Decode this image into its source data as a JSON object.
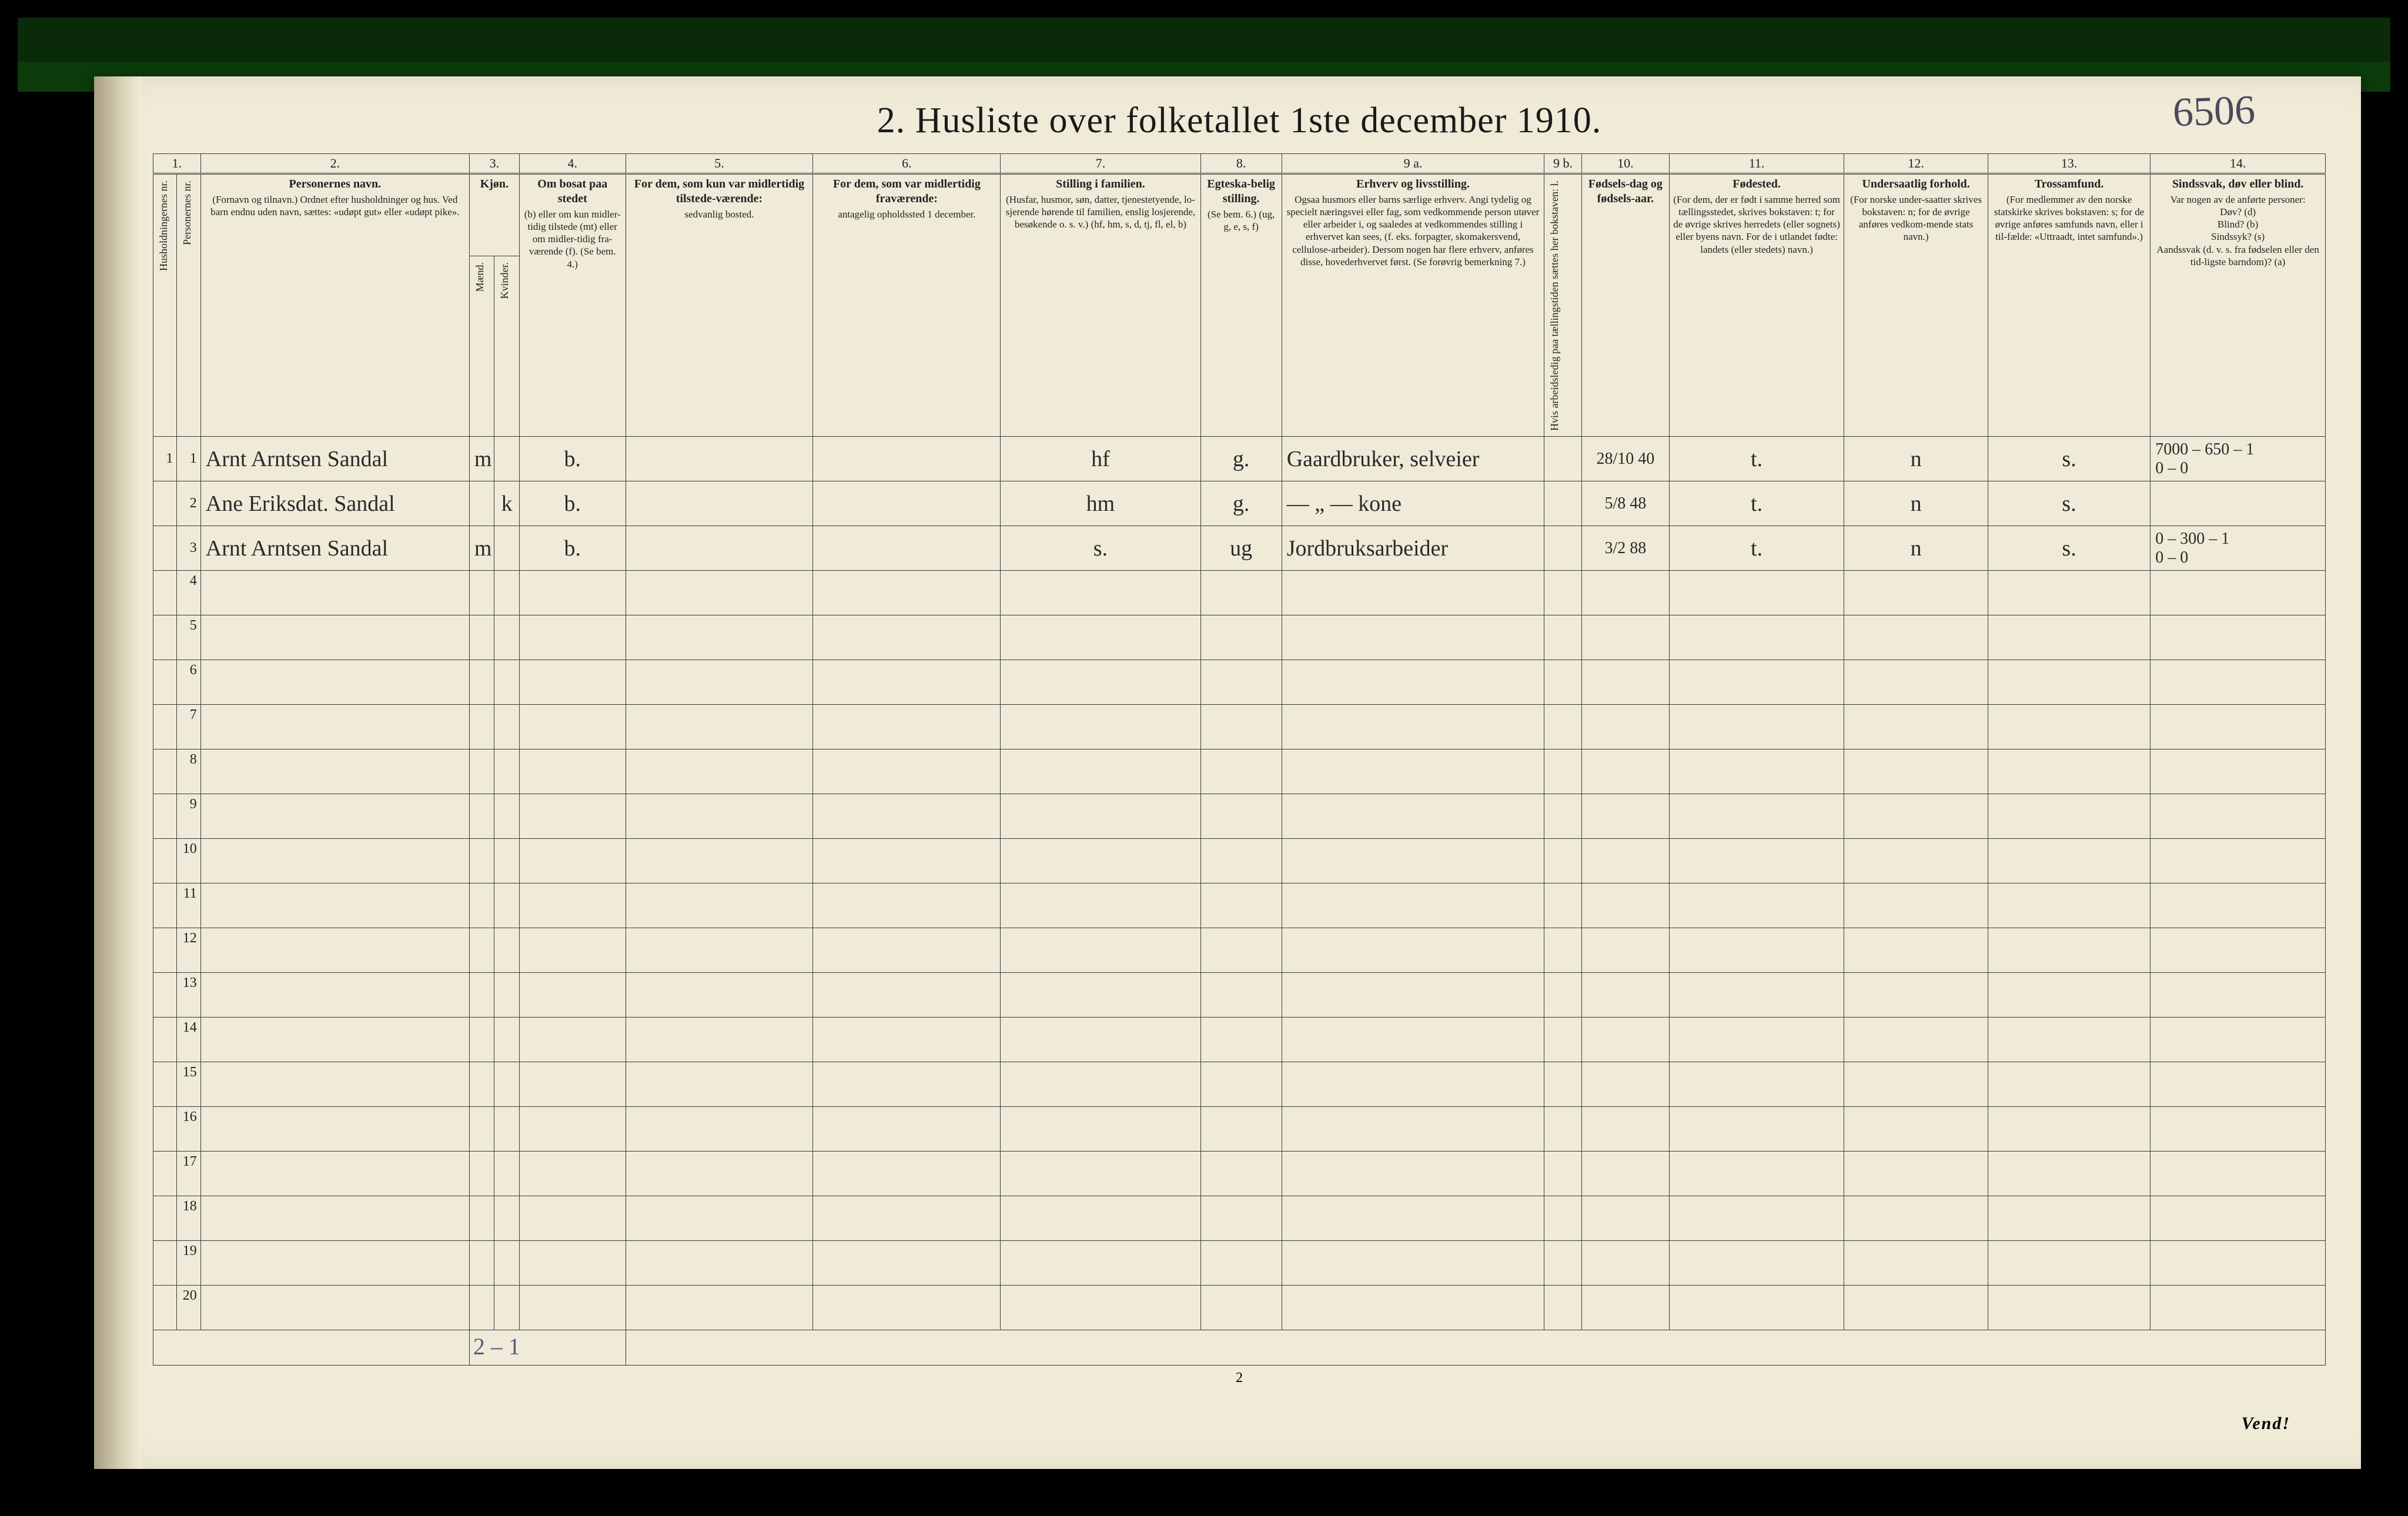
{
  "title": "2.   Husliste over folketallet 1ste december 1910.",
  "topright_handwritten": "6506",
  "page_number": "2",
  "turn_over": "Vend!",
  "foot_tally": "2 – 1",
  "col_numbers": [
    "1.",
    "2.",
    "3.",
    "4.",
    "5.",
    "6.",
    "7.",
    "8.",
    "9 a.",
    "9 b.",
    "10.",
    "11.",
    "12.",
    "13.",
    "14."
  ],
  "headers": {
    "hh": "Husholdningernes nr.",
    "pn": "Personernes nr.",
    "name_main": "Personernes navn.",
    "name_sub": "(Fornavn og tilnavn.)\nOrdnet efter husholdninger og hus.\nVed barn endnu uden navn, sættes: «udøpt gut» eller «udøpt pike».",
    "sex_main": "Kjøn.",
    "sex_m": "Mænd.",
    "sex_k": "Kvinder.",
    "c4_main": "Om bosat paa stedet",
    "c4_sub": "(b) eller om kun midler-tidig tilstede (mt) eller om midler-tidig fra-værende (f). (Se bem. 4.)",
    "c5_main": "For dem, som kun var midlertidig tilstede-værende:",
    "c5_sub": "sedvanlig bosted.",
    "c6_main": "For dem, som var midlertidig fraværende:",
    "c6_sub": "antagelig opholdssted 1 december.",
    "c7_main": "Stilling i familien.",
    "c7_sub": "(Husfar, husmor, søn, datter, tjenestetyende, lo-sjerende hørende til familien, enslig losjerende, besøkende o. s. v.) (hf, hm, s, d, tj, fl, el, b)",
    "c8_main": "Egteska-belig stilling.",
    "c8_sub": "(Se bem. 6.) (ug, g, e, s, f)",
    "c9a_main": "Erhverv og livsstilling.",
    "c9a_sub": "Ogsaa husmors eller barns særlige erhverv. Angi tydelig og specielt næringsvei eller fag, som vedkommende person utøver eller arbeider i, og saaledes at vedkommendes stilling i erhvervet kan sees, (f. eks. forpagter, skomakersvend, cellulose-arbeider). Dersom nogen har flere erhverv, anføres disse, hovederhvervet først. (Se forøvrig bemerkning 7.)",
    "c9b": "Hvis arbeidsledig paa tællingstiden sættes her bokstaven: l.",
    "c10_main": "Fødsels-dag og fødsels-aar.",
    "c11_main": "Fødested.",
    "c11_sub": "(For dem, der er født i samme herred som tællingsstedet, skrives bokstaven: t; for de øvrige skrives herredets (eller sognets) eller byens navn. For de i utlandet fødte: landets (eller stedets) navn.)",
    "c12_main": "Undersaatlig forhold.",
    "c12_sub": "(For norske under-saatter skrives bokstaven: n; for de øvrige anføres vedkom-mende stats navn.)",
    "c13_main": "Trossamfund.",
    "c13_sub": "(For medlemmer av den norske statskirke skrives bokstaven: s; for de øvrige anføres samfunds navn, eller i til-fælde: «Uttraadt, intet samfund».)",
    "c14_main": "Sindssvak, døv eller blind.",
    "c14_sub": "Var nogen av de anførte personer:\nDøv?        (d)\nBlind?       (b)\nSindssyk?  (s)\nAandssvak (d. v. s. fra fødselen eller den tid-ligste barndom)?   (a)"
  },
  "rows": [
    {
      "hh": "1",
      "pn": "1",
      "name": "Arnt Arntsen Sandal",
      "sex_m": "m",
      "sex_k": "",
      "bosat": "b.",
      "col5": "",
      "col6": "",
      "col7": "hf",
      "col8": "g.",
      "col9a": "Gaardbruker, selveier",
      "col9b": "",
      "col10": "28/10 40",
      "col11": "t.",
      "col12": "n",
      "col13": "s.",
      "col14": "7000 – 650 – 1\n0 – 0"
    },
    {
      "hh": "",
      "pn": "2",
      "name": "Ane Eriksdat. Sandal",
      "sex_m": "",
      "sex_k": "k",
      "bosat": "b.",
      "col5": "",
      "col6": "",
      "col7": "hm",
      "col8": "g.",
      "col9a": "— „ —   kone",
      "col9b": "",
      "col10": "5/8 48",
      "col11": "t.",
      "col12": "n",
      "col13": "s.",
      "col14": ""
    },
    {
      "hh": "",
      "pn": "3",
      "name": "Arnt Arntsen Sandal",
      "sex_m": "m",
      "sex_k": "",
      "bosat": "b.",
      "col5": "",
      "col6": "",
      "col7": "s.",
      "col8": "ug",
      "col9a": "Jordbruksarbeider",
      "col9b": "",
      "col10": "3/2 88",
      "col11": "t.",
      "col12": "n",
      "col13": "s.",
      "col14": "0 – 300 – 1\n0 – 0"
    }
  ],
  "blank_rows": [
    "4",
    "5",
    "6",
    "7",
    "8",
    "9",
    "10",
    "11",
    "12",
    "13",
    "14",
    "15",
    "16",
    "17",
    "18",
    "19",
    "20"
  ],
  "colors": {
    "paper": "#f0ebd8",
    "ink": "#1a1a1a",
    "rule": "#3a3a3a",
    "pencil": "#5a5a80"
  }
}
